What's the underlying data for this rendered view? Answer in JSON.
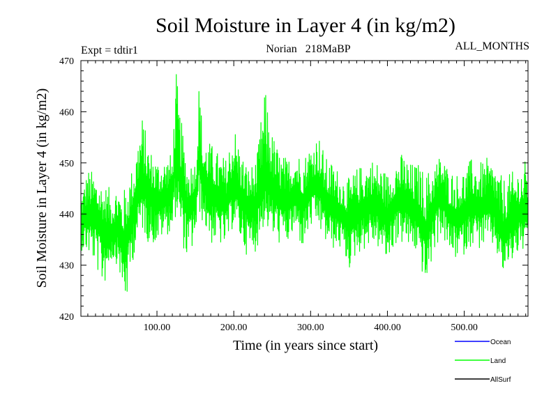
{
  "header": {
    "title": "Soil Moisture in Layer 4 (in kg/m2)",
    "expt": "Expt = tdtir1",
    "subtitle": "Norian   218MaBP",
    "months": "ALL_MONTHS"
  },
  "chart_data": {
    "type": "line",
    "title": "Soil Moisture in Layer 4 (in kg/m2)",
    "xlabel": "Time (in years since start)",
    "ylabel": "Soil Moisture in Layer 4 (in kg/m2)",
    "xlim": [
      1,
      583
    ],
    "ylim": [
      420,
      470
    ],
    "xticks": [
      100,
      200,
      300,
      400,
      500
    ],
    "xtick_labels": [
      "100.00",
      "200.00",
      "300.00",
      "400.00",
      "500.00"
    ],
    "yticks": [
      420,
      430,
      440,
      450,
      460,
      470
    ],
    "ytick_labels": [
      "420",
      "430",
      "440",
      "450",
      "460",
      "470"
    ],
    "legend_position": "bottom-right",
    "legend": [
      {
        "name": "Ocean",
        "color": "#0000ff"
      },
      {
        "name": "Land",
        "color": "#00ff00"
      },
      {
        "name": "AllSurf",
        "color": "#000000"
      }
    ],
    "series": [
      {
        "name": "Land",
        "color": "#00ff00",
        "x": [
          1,
          10,
          20,
          30,
          40,
          50,
          55,
          60,
          70,
          80,
          90,
          100,
          110,
          120,
          125,
          130,
          140,
          150,
          155,
          160,
          170,
          180,
          190,
          200,
          210,
          220,
          230,
          240,
          250,
          260,
          270,
          280,
          290,
          300,
          310,
          320,
          330,
          340,
          350,
          360,
          370,
          380,
          390,
          400,
          410,
          420,
          430,
          440,
          450,
          460,
          470,
          480,
          490,
          500,
          510,
          520,
          530,
          540,
          550,
          560,
          570,
          583
        ],
        "center": [
          438,
          440,
          439,
          437,
          436,
          437,
          434,
          435,
          441,
          446,
          444,
          442,
          443,
          444,
          452,
          447,
          441,
          443,
          451,
          446,
          444,
          443,
          442,
          446,
          443,
          441,
          442,
          447,
          445,
          443,
          442,
          444,
          442,
          445,
          446,
          442,
          441,
          440,
          438,
          440,
          441,
          442,
          441,
          439,
          442,
          443,
          441,
          440,
          436,
          441,
          444,
          440,
          439,
          440,
          442,
          441,
          442,
          441,
          436,
          438,
          440,
          440
        ],
        "min": [
          433,
          432,
          430,
          425,
          431,
          430,
          424,
          422,
          432,
          437,
          434,
          434,
          436,
          436,
          440,
          436,
          430,
          435,
          440,
          438,
          434,
          434,
          433,
          438,
          434,
          431,
          433,
          438,
          435,
          434,
          434,
          436,
          433,
          437,
          437,
          434,
          433,
          433,
          429,
          432,
          433,
          434,
          433,
          430,
          434,
          434,
          433,
          432,
          425,
          432,
          436,
          432,
          431,
          432,
          434,
          433,
          434,
          433,
          428,
          430,
          432,
          433
        ],
        "max": [
          444,
          449,
          448,
          446,
          445,
          446,
          444,
          446,
          450,
          460,
          453,
          451,
          451,
          452,
          468,
          460,
          450,
          451,
          467,
          455,
          454,
          452,
          451,
          458,
          452,
          449,
          451,
          465,
          456,
          452,
          451,
          453,
          451,
          454,
          456,
          451,
          450,
          448,
          447,
          449,
          450,
          451,
          450,
          448,
          451,
          452,
          450,
          450,
          448,
          450,
          452,
          449,
          448,
          449,
          451,
          450,
          451,
          450,
          447,
          448,
          449,
          451
        ]
      }
    ]
  }
}
